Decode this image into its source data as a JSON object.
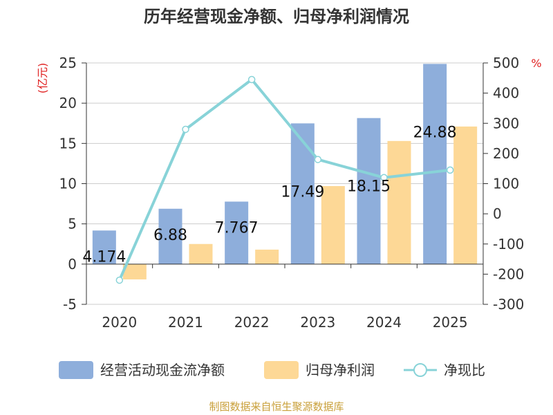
{
  "chart_data": {
    "type": "bar",
    "title": "历年经营现金净额、归母净利润情况",
    "categories": [
      "2020",
      "2021",
      "2022",
      "2023",
      "2024",
      "2025"
    ],
    "series": [
      {
        "name": "经营活动现金流净额",
        "axis": "left",
        "kind": "bar",
        "color": "#8eaedb",
        "values": [
          4.174,
          6.88,
          7.767,
          17.49,
          18.15,
          24.88
        ],
        "data_labels": [
          "4.174",
          "6.88",
          "7.767",
          "17.49",
          "18.15",
          "24.88"
        ]
      },
      {
        "name": "归母净利润",
        "axis": "left",
        "kind": "bar",
        "color": "#fdd896",
        "values": [
          -1.9,
          2.5,
          1.8,
          9.7,
          15.3,
          17.1
        ]
      },
      {
        "name": "净现比",
        "axis": "right",
        "kind": "line",
        "color": "#88d3d8",
        "values": [
          -220,
          280,
          445,
          180,
          120,
          145
        ]
      }
    ],
    "left_axis": {
      "label": "(亿元)",
      "min": -5,
      "max": 25,
      "step": 5,
      "ticks": [
        "-5",
        "0",
        "5",
        "10",
        "15",
        "20",
        "25"
      ]
    },
    "right_axis": {
      "label": "%",
      "min": -300,
      "max": 500,
      "step": 100,
      "ticks": [
        "-300",
        "-200",
        "-100",
        "0",
        "100",
        "200",
        "300",
        "400",
        "500"
      ]
    },
    "legend_position": "bottom",
    "grid": true
  },
  "footer": {
    "source": "制图数据来自恒生聚源数据库"
  },
  "colors": {
    "axis_label_red": "#e02020",
    "source_text": "#c9a03a",
    "title": "#333333"
  }
}
